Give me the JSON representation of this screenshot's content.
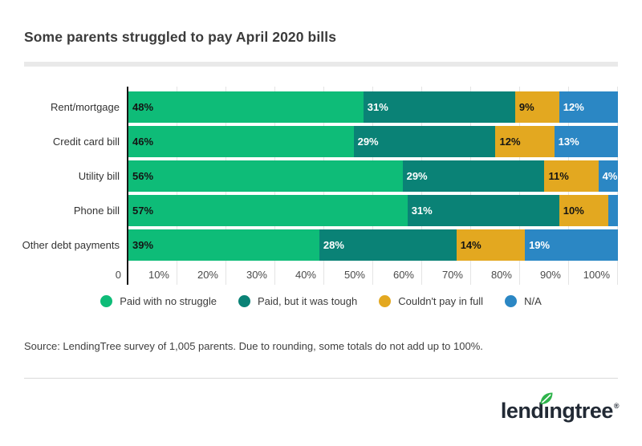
{
  "title": "Some parents struggled to pay April 2020 bills",
  "source_note": "Source: LendingTree survey of 1,005 parents. Due to rounding, some totals do not add up to 100%.",
  "logo": {
    "wordmark": "lendingtree",
    "registered_mark": "®",
    "leaf_color": "#2EB34B",
    "text_color": "#222A35"
  },
  "colors": {
    "axis": "#141414",
    "gridline": "#E4E4E4",
    "title_divider": "#E9E9E9",
    "footer_divider": "#D9D9D9"
  },
  "chart_data": {
    "type": "bar",
    "orientation": "horizontal",
    "stacked": true,
    "title": "Some parents struggled to pay April 2020 bills",
    "categories": [
      "Rent/mortgage",
      "Credit card bill",
      "Utility bill",
      "Phone bill",
      "Other debt payments"
    ],
    "series": [
      {
        "name": "Paid with no struggle",
        "color": "#0EBC78",
        "values": [
          48,
          46,
          56,
          57,
          39
        ]
      },
      {
        "name": "Paid, but it was tough",
        "color": "#0A8276",
        "values": [
          31,
          29,
          29,
          31,
          28
        ]
      },
      {
        "name": "Couldn't pay in full",
        "color": "#E3A820",
        "values": [
          9,
          12,
          11,
          10,
          14
        ]
      },
      {
        "name": "N/A",
        "color": "#2B87C4",
        "values": [
          12,
          13,
          4,
          2,
          19
        ]
      }
    ],
    "value_labels": [
      [
        "48%",
        "31%",
        "9%",
        "12%"
      ],
      [
        "46%",
        "29%",
        "12%",
        "13%"
      ],
      [
        "56%",
        "29%",
        "11%",
        "4%"
      ],
      [
        "57%",
        "31%",
        "10%",
        ""
      ],
      [
        "39%",
        "28%",
        "14%",
        "19%"
      ]
    ],
    "label_text_colors": [
      "#141414",
      "#FFFFFF",
      "#141414",
      "#FFFFFF"
    ],
    "x_ticks": [
      "0",
      "10%",
      "20%",
      "30%",
      "40%",
      "50%",
      "60%",
      "70%",
      "80%",
      "90%",
      "100%"
    ],
    "xlim": [
      0,
      100
    ],
    "grid": true,
    "legend_position": "bottom"
  }
}
